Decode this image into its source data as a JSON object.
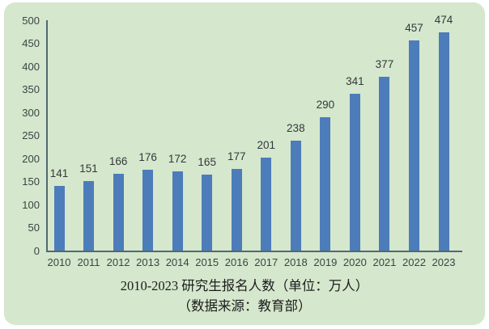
{
  "chart_data": {
    "type": "bar",
    "categories": [
      "2010",
      "2011",
      "2012",
      "2013",
      "2014",
      "2015",
      "2016",
      "2017",
      "2018",
      "2019",
      "2020",
      "2021",
      "2022",
      "2023"
    ],
    "values": [
      141,
      151,
      166,
      176,
      172,
      165,
      177,
      201,
      238,
      290,
      341,
      377,
      457,
      474
    ],
    "title": "2010-2023 研究生报名人数（单位：万人）",
    "subtitle": "（数据来源：教育部）",
    "xlabel": "",
    "ylabel": "",
    "ylim": [
      0,
      500
    ],
    "ytick_step": 50,
    "grid": false,
    "legend_position": "none",
    "data_labels": true,
    "bar_color": "#4d7cba",
    "axis_color": "#4f6a70",
    "tick_label_color": "#3d4442",
    "background_color": "#d5e7cd",
    "page_background": "#ffffff"
  }
}
